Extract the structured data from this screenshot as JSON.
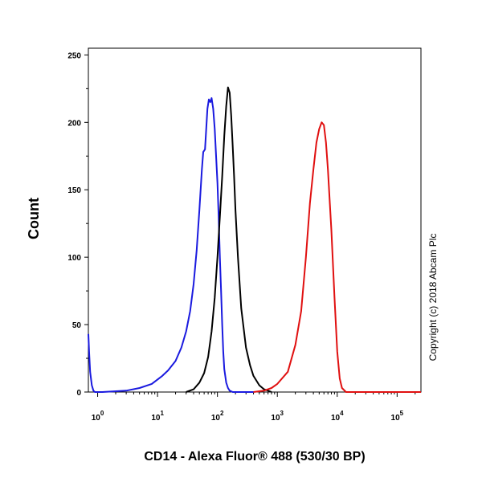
{
  "chart_data": {
    "type": "line",
    "title": "",
    "xlabel": "CD14 - Alexa Fluor® 488 (530/30 BP)",
    "ylabel": "Count",
    "xscale": "log",
    "xlim": [
      0.7,
      250000
    ],
    "ylim": [
      0,
      255
    ],
    "yticks": [
      0,
      50,
      100,
      150,
      200,
      250
    ],
    "xtick_labels": [
      {
        "base": "10",
        "exp": "0",
        "value": 1
      },
      {
        "base": "10",
        "exp": "1",
        "value": 10
      },
      {
        "base": "10",
        "exp": "2",
        "value": 100
      },
      {
        "base": "10",
        "exp": "3",
        "value": 1000
      },
      {
        "base": "10",
        "exp": "4",
        "value": 10000
      },
      {
        "base": "10",
        "exp": "5",
        "value": 100000
      }
    ],
    "grid": false,
    "legend": "none",
    "annotation": "Copyright (c) 2018 Abcam Plc",
    "series": [
      {
        "color": "#1a1adf",
        "x": [
          0.7,
          0.72,
          0.75,
          0.8,
          0.85,
          0.9,
          1.2,
          3,
          5,
          8,
          12,
          15,
          20,
          25,
          30,
          35,
          40,
          45,
          50,
          55,
          58,
          62,
          65,
          68,
          72,
          76,
          80,
          85,
          90,
          95,
          100,
          105,
          110,
          115,
          120,
          125,
          130,
          140,
          150,
          160,
          180,
          200,
          250,
          400
        ],
        "y": [
          43,
          30,
          15,
          5,
          1,
          0,
          0,
          1,
          3,
          6,
          12,
          16,
          23,
          33,
          45,
          60,
          80,
          105,
          135,
          165,
          178,
          180,
          195,
          210,
          217,
          215,
          218,
          210,
          195,
          175,
          155,
          130,
          100,
          75,
          50,
          30,
          17,
          7,
          3,
          1,
          0,
          0,
          0,
          0
        ]
      },
      {
        "color": "#000000",
        "x": [
          30,
          40,
          50,
          60,
          70,
          80,
          90,
          100,
          110,
          120,
          130,
          140,
          150,
          160,
          170,
          180,
          190,
          200,
          220,
          250,
          300,
          350,
          400,
          500,
          600,
          700,
          800
        ],
        "y": [
          0,
          2,
          7,
          14,
          26,
          45,
          70,
          100,
          130,
          160,
          190,
          212,
          226,
          222,
          205,
          182,
          160,
          135,
          100,
          62,
          33,
          20,
          12,
          5,
          2,
          1,
          0
        ]
      },
      {
        "color": "#e01010",
        "x": [
          400,
          600,
          800,
          1000,
          1500,
          2000,
          2500,
          3000,
          3500,
          4000,
          4500,
          5000,
          5500,
          6000,
          6500,
          7000,
          8000,
          9000,
          10000,
          11000,
          12000,
          14000,
          18000,
          250000
        ],
        "y": [
          0,
          1,
          3,
          6,
          15,
          35,
          60,
          100,
          140,
          165,
          185,
          195,
          200,
          198,
          185,
          165,
          120,
          70,
          30,
          10,
          3,
          0,
          0,
          0
        ]
      }
    ]
  }
}
